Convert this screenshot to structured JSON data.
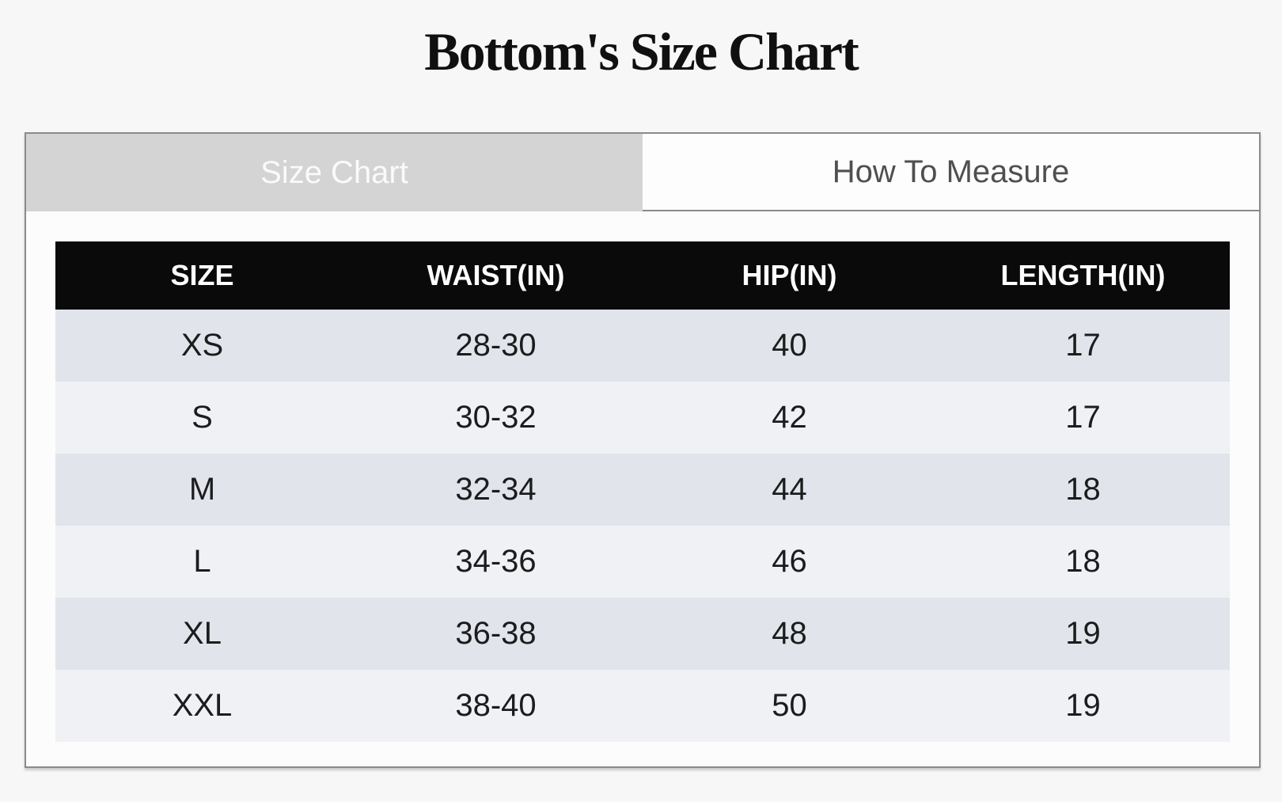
{
  "page": {
    "title": "Bottom's Size Chart"
  },
  "tabs": [
    {
      "label": "Size Chart",
      "active": true
    },
    {
      "label": "How To Measure",
      "active": false
    }
  ],
  "table": {
    "columns": [
      "SIZE",
      "WAIST(IN)",
      "HIP(IN)",
      "LENGTH(IN)"
    ],
    "rows": [
      [
        "XS",
        "28-30",
        "40",
        "17"
      ],
      [
        "S",
        "30-32",
        "42",
        "17"
      ],
      [
        "M",
        "32-34",
        "44",
        "18"
      ],
      [
        "L",
        "34-36",
        "46",
        "18"
      ],
      [
        "XL",
        "36-38",
        "48",
        "19"
      ],
      [
        "XXL",
        "38-40",
        "50",
        "19"
      ]
    ]
  },
  "chart_data": {
    "type": "table",
    "title": "Bottom's Size Chart",
    "columns": [
      "SIZE",
      "WAIST(IN)",
      "HIP(IN)",
      "LENGTH(IN)"
    ],
    "rows": [
      [
        "XS",
        "28-30",
        "40",
        "17"
      ],
      [
        "S",
        "30-32",
        "42",
        "17"
      ],
      [
        "M",
        "32-34",
        "44",
        "18"
      ],
      [
        "L",
        "34-36",
        "46",
        "18"
      ],
      [
        "XL",
        "36-38",
        "48",
        "19"
      ],
      [
        "XXL",
        "38-40",
        "50",
        "19"
      ]
    ]
  },
  "colors": {
    "page-bg": "#f7f7f7",
    "panel-bg": "#fcfcfc",
    "panel-border": "#8a8a8a",
    "tab-active-bg": "#d4d4d4",
    "tab-active-text": "#fafafa",
    "tab-inactive-bg": "#fdfdfd",
    "tab-inactive-text": "#4f4f4f",
    "table-header-bg": "#0a0a0a",
    "table-header-text": "#ffffff",
    "row-odd-bg": "#e1e4eb",
    "row-even-bg": "#eff1f4",
    "cell-text": "#1c1c1c",
    "title-text": "#101010"
  }
}
